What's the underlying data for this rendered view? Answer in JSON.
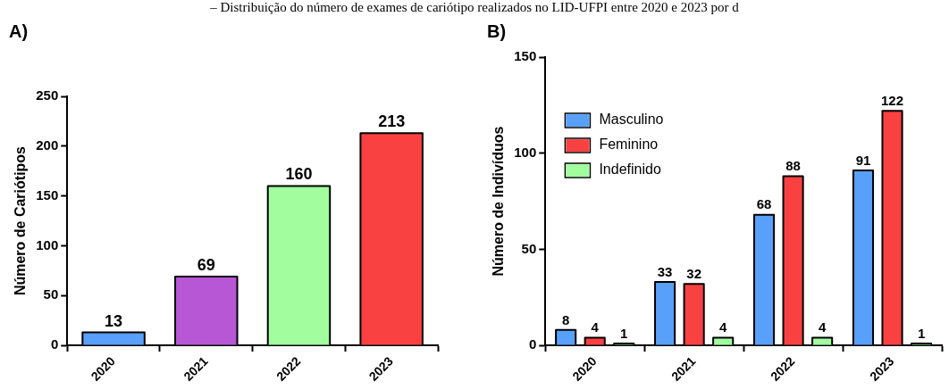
{
  "chart_data": [
    {
      "type": "bar",
      "title": "A)",
      "annotations": [
        "– Distribuição do número de exames de cariótipo realizados no LID-UFPI entre 2020 e 2023 por d"
      ],
      "ylabel": "Número de Cariótipos",
      "categories": [
        "2020",
        "2021",
        "2022",
        "2023"
      ],
      "values": [
        13,
        69,
        160,
        213
      ],
      "colors": [
        "#58a0fa",
        "#b857d6",
        "#a2fd9f",
        "#f94141"
      ],
      "ylim": [
        0,
        250
      ],
      "yticks": [
        0,
        50,
        100,
        150,
        200,
        250
      ],
      "data_labels": true,
      "grid": false,
      "legend": false
    },
    {
      "type": "bar",
      "title": "B)",
      "ylabel": "Número de Indivíduos",
      "categories": [
        "2020",
        "2021",
        "2022",
        "2023"
      ],
      "series": [
        {
          "name": "Masculino",
          "color": "#58a0fa",
          "values": [
            8,
            33,
            68,
            91
          ]
        },
        {
          "name": "Feminino",
          "color": "#f94141",
          "values": [
            4,
            32,
            88,
            122
          ]
        },
        {
          "name": "Indefinido",
          "color": "#a2fd9f",
          "values": [
            1,
            4,
            4,
            1
          ]
        }
      ],
      "ylim": [
        0,
        150
      ],
      "yticks": [
        0,
        50,
        100,
        150
      ],
      "data_labels": true,
      "grid": false,
      "legend": "top left"
    }
  ]
}
